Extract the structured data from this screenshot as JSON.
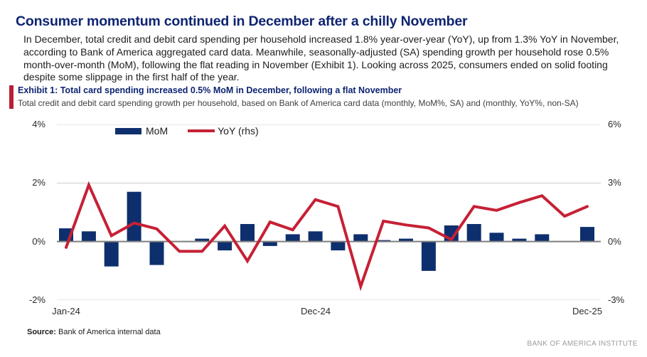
{
  "page": {
    "title": "Consumer momentum continued in December after a chilly November",
    "body_paragraph": "In December, total credit and debit card spending per household increased 1.8% year-over-year (YoY), up from 1.3% YoY in November, according to Bank of America aggregated card data. Meanwhile, seasonally-adjusted (SA) spending growth per household rose 0.5% month-over-month (MoM), following the flat reading in November (Exhibit 1). Looking across 2025, consumers ended on solid footing despite some slippage in the first half of the year."
  },
  "exhibit": {
    "heading": "Exhibit 1: Total card spending increased 0.5% MoM in December, following a flat November",
    "subtitle": "Total credit and debit card spending growth per household, based on Bank of America card data (monthly, MoM%, SA) and (monthly, YoY%, non-SA)",
    "accent_color": "#b91f35"
  },
  "legend": {
    "mom_label": "MoM",
    "yoy_label": "YoY (rhs)"
  },
  "source": {
    "label": "Source:",
    "text": " Bank of America internal data"
  },
  "footer": {
    "brand": "BANK OF AMERICA INSTITUTE"
  },
  "colors": {
    "bar_navy": "#0e2f6e",
    "line_red": "#c62035",
    "gridline": "#cccccc",
    "zero_line": "#7f7f7f",
    "title_navy": "#0e2472"
  },
  "chart_data": {
    "type": "bar",
    "subtype": "bar+line combo",
    "categories": [
      "Jan-24",
      "Feb-24",
      "Mar-24",
      "Apr-24",
      "May-24",
      "Jun-24",
      "Jul-24",
      "Aug-24",
      "Sep-24",
      "Oct-24",
      "Nov-24",
      "Dec-24",
      "Jan-25",
      "Feb-25",
      "Mar-25",
      "Apr-25",
      "May-25",
      "Jun-25",
      "Jul-25",
      "Aug-25",
      "Sep-25",
      "Oct-25",
      "Nov-25",
      "Dec-25"
    ],
    "series": [
      {
        "name": "MoM",
        "type": "bar",
        "axis": "left",
        "values": [
          0.45,
          0.35,
          -0.85,
          1.7,
          -0.8,
          0.0,
          0.1,
          -0.3,
          0.6,
          -0.15,
          0.25,
          0.35,
          -0.3,
          0.25,
          0.05,
          0.1,
          -1.0,
          0.55,
          0.6,
          0.3,
          0.1,
          0.25,
          0.0,
          0.5
        ]
      },
      {
        "name": "YoY (rhs)",
        "type": "line",
        "axis": "right",
        "values": [
          -0.3,
          2.9,
          0.3,
          0.95,
          0.65,
          -0.5,
          -0.5,
          0.8,
          -1.0,
          1.0,
          0.6,
          2.15,
          1.8,
          -2.3,
          1.05,
          0.85,
          0.7,
          0.1,
          1.8,
          1.6,
          2.0,
          2.35,
          1.3,
          1.8
        ]
      }
    ],
    "left_axis": {
      "range": [
        -2,
        4
      ],
      "tick_values": [
        4,
        2,
        0,
        -2
      ],
      "tick_labels": [
        "4%",
        "2%",
        "0%",
        "-2%"
      ]
    },
    "right_axis": {
      "range": [
        -3,
        6
      ],
      "tick_values": [
        6,
        3,
        0,
        -3
      ],
      "tick_labels": [
        "6%",
        "3%",
        "0%",
        "-3%"
      ]
    },
    "x_ticks": [
      {
        "label": "Jan-24",
        "index": 0
      },
      {
        "label": "Dec-24",
        "index": 11
      },
      {
        "label": "Dec-25",
        "index": 23
      }
    ],
    "grid": true,
    "legend_position": "top-inside"
  }
}
